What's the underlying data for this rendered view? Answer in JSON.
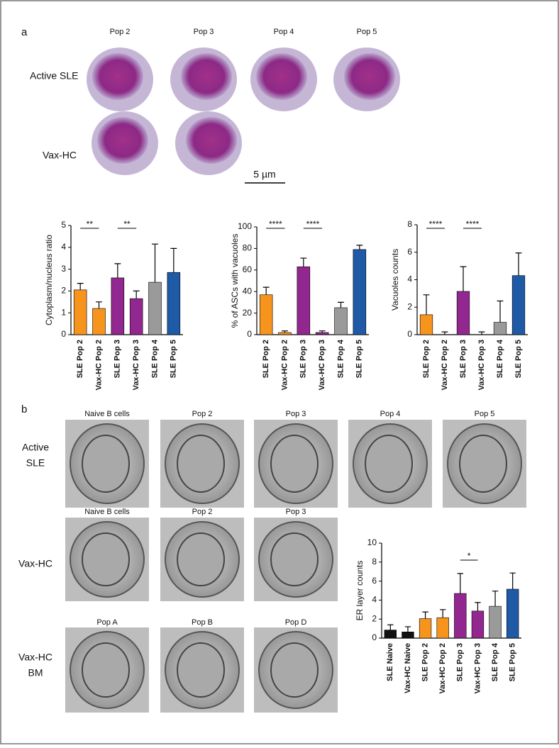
{
  "panel_a": {
    "label": "a",
    "rows": [
      {
        "label": "Active SLE",
        "captions": [
          "Pop 2",
          "Pop 3",
          "Pop 4",
          "Pop 5"
        ]
      },
      {
        "label": "Vax-HC",
        "captions": [
          "Pop 2",
          "Pop 3"
        ]
      }
    ],
    "scale_bar": "5 µm"
  },
  "panel_b": {
    "label": "b",
    "rows": [
      {
        "label_lines": [
          "Active",
          "SLE"
        ],
        "captions": [
          "Naive B cells",
          "Pop 2",
          "Pop 3",
          "Pop 4",
          "Pop 5"
        ]
      },
      {
        "label_lines": [
          "Vax-HC"
        ],
        "captions": [
          "Naive B cells",
          "Pop 2",
          "Pop 3"
        ]
      },
      {
        "label_lines": [
          "Vax-HC",
          "BM"
        ],
        "captions": [
          "Pop A",
          "Pop B",
          "Pop D"
        ]
      }
    ]
  },
  "chart_data": [
    {
      "type": "bar",
      "y_label": "Cytoplasm/nucleus ratio",
      "categories": [
        "SLE Pop 2",
        "Vax-HC Pop 2",
        "SLE Pop 3",
        "Vax-HC Pop 3",
        "SLE Pop 4",
        "SLE Pop 5"
      ],
      "values": [
        2.05,
        1.2,
        2.6,
        1.65,
        2.4,
        2.85
      ],
      "errors": [
        0.3,
        0.3,
        0.65,
        0.35,
        1.75,
        1.1
      ],
      "colors": [
        "#f7941d",
        "#f7941d",
        "#92278f",
        "#92278f",
        "#9a9a9a",
        "#1f5aa6"
      ],
      "ylim": [
        0,
        5
      ],
      "yticks": [
        0,
        1,
        2,
        3,
        4,
        5
      ],
      "annotations": [
        "**",
        "**"
      ]
    },
    {
      "type": "bar",
      "y_label": "% of ASCs with vacuoles",
      "categories": [
        "SLE Pop 2",
        "Vax-HC Pop 2",
        "SLE Pop 3",
        "Vax-HC Pop 3",
        "SLE Pop 4",
        "SLE Pop 5"
      ],
      "values": [
        37,
        2,
        63,
        2,
        25,
        79
      ],
      "errors": [
        7,
        1.5,
        8,
        1.5,
        5,
        4
      ],
      "colors": [
        "#f7941d",
        "#f7941d",
        "#92278f",
        "#92278f",
        "#9a9a9a",
        "#1f5aa6"
      ],
      "ylim": [
        0,
        100
      ],
      "yticks": [
        0,
        20,
        40,
        60,
        80,
        100
      ],
      "annotations": [
        "****",
        "****"
      ]
    },
    {
      "type": "bar",
      "y_label": "Vacuoles counts",
      "categories": [
        "SLE Pop 2",
        "Vax-HC Pop 2",
        "SLE Pop 3",
        "Vax-HC Pop 3",
        "SLE Pop 4",
        "SLE Pop 5"
      ],
      "values": [
        1.45,
        0,
        3.15,
        0,
        0.9,
        4.3
      ],
      "errors": [
        1.45,
        0.2,
        1.8,
        0.2,
        1.55,
        1.65
      ],
      "colors": [
        "#f7941d",
        "#f7941d",
        "#92278f",
        "#92278f",
        "#9a9a9a",
        "#1f5aa6"
      ],
      "ylim": [
        0,
        8
      ],
      "yticks": [
        0,
        2,
        4,
        6,
        8
      ],
      "annotations": [
        "****",
        "****"
      ]
    },
    {
      "type": "bar",
      "y_label": "ER layer counts",
      "categories": [
        "SLE Naive",
        "Vax-HC Naive",
        "SLE Pop 2",
        "Vax-HC Pop 2",
        "SLE Pop 3",
        "Vax-HC Pop 3",
        "SLE Pop 4",
        "SLE Pop 5"
      ],
      "values": [
        0.85,
        0.65,
        2.05,
        2.15,
        4.7,
        2.85,
        3.35,
        5.15
      ],
      "errors": [
        0.55,
        0.55,
        0.7,
        0.85,
        2.1,
        0.9,
        1.6,
        1.7
      ],
      "colors": [
        "#111111",
        "#111111",
        "#f7941d",
        "#f7941d",
        "#92278f",
        "#92278f",
        "#9a9a9a",
        "#1f5aa6"
      ],
      "ylim": [
        0,
        10
      ],
      "yticks": [
        0,
        2,
        4,
        6,
        8,
        10
      ],
      "annotations": [
        "*"
      ]
    }
  ]
}
